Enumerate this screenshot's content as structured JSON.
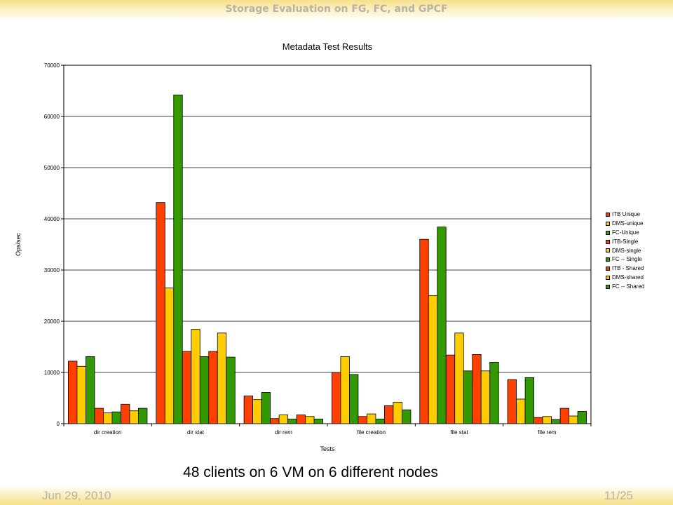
{
  "slide": {
    "header_title": "Storage Evaluation on FG, FC, and GPCF",
    "caption": "48 clients on 6 VM on 6 different nodes",
    "footer_date": "Jun 29, 2010",
    "footer_page": "11/25"
  },
  "chart_data": {
    "type": "bar",
    "title": "Metadata Test Results",
    "xlabel": "Tests",
    "ylabel": "Ops/sec",
    "ylim": [
      0,
      70000
    ],
    "yticks": [
      0,
      10000,
      20000,
      30000,
      40000,
      50000,
      60000,
      70000
    ],
    "grid": true,
    "legend_position": "right",
    "categories": [
      "dir creation",
      "dir stat",
      "dir rem",
      "file creation",
      "file stat",
      "file rem"
    ],
    "series": [
      {
        "name": "ITB Unique",
        "color": "#ff4000",
        "values": [
          12200,
          43200,
          5400,
          10000,
          36000,
          8600
        ]
      },
      {
        "name": "DMS-unique",
        "color": "#ffcc00",
        "values": [
          11200,
          26500,
          4700,
          13100,
          25000,
          4800
        ]
      },
      {
        "name": "FC-Unique",
        "color": "#339900",
        "values": [
          13100,
          64200,
          6100,
          9600,
          38400,
          9000
        ]
      },
      {
        "name": "ITB-Single",
        "color": "#ff4000",
        "values": [
          3000,
          14100,
          1000,
          1400,
          13400,
          1200
        ]
      },
      {
        "name": "DMS-single",
        "color": "#ffcc00",
        "values": [
          2100,
          18400,
          1700,
          1900,
          17700,
          1400
        ]
      },
      {
        "name": "FC -- Single",
        "color": "#339900",
        "values": [
          2300,
          13100,
          900,
          900,
          10300,
          800
        ]
      },
      {
        "name": "ITB -  Shared",
        "color": "#ff4000",
        "values": [
          3800,
          14100,
          1700,
          3500,
          13500,
          3000
        ]
      },
      {
        "name": "DMS-shared",
        "color": "#ffcc00",
        "values": [
          2500,
          17700,
          1400,
          4200,
          10300,
          1500
        ]
      },
      {
        "name": "FC -- Shared",
        "color": "#339900",
        "values": [
          3000,
          13000,
          900,
          2700,
          12000,
          2400
        ]
      }
    ]
  }
}
